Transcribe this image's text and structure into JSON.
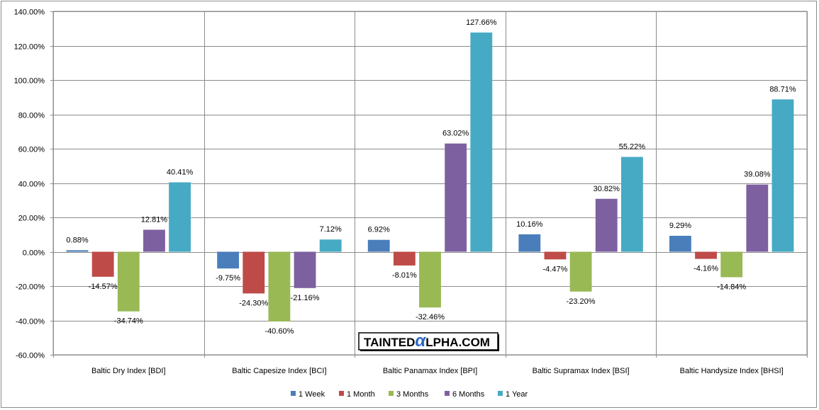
{
  "chart_data": {
    "type": "bar",
    "categories": [
      "Baltic Dry Index [BDI]",
      "Baltic Capesize Index [BCI]",
      "Baltic Panamax Index [BPI]",
      "Baltic Supramax Index [BSI]",
      "Baltic Handysize Index [BHSI]"
    ],
    "series": [
      {
        "name": "1 Week",
        "color": "#4a7ebb",
        "values": [
          0.88,
          -9.75,
          6.92,
          10.16,
          9.29
        ]
      },
      {
        "name": "1 Month",
        "color": "#be4b48",
        "values": [
          -14.57,
          -24.3,
          -8.01,
          -4.47,
          -4.16
        ]
      },
      {
        "name": "3 Months",
        "color": "#98b954",
        "values": [
          -34.74,
          -40.6,
          -32.46,
          -23.2,
          -14.84
        ]
      },
      {
        "name": "6 Months",
        "color": "#7d60a0",
        "values": [
          12.81,
          -21.16,
          63.02,
          30.82,
          39.08
        ]
      },
      {
        "name": "1 Year",
        "color": "#46aac5",
        "values": [
          40.41,
          7.12,
          127.66,
          55.22,
          88.71
        ]
      }
    ],
    "data_labels": [
      [
        "0.88%",
        "-9.75%",
        "6.92%",
        "10.16%",
        "9.29%"
      ],
      [
        "-14.57%",
        "-24.30%",
        "-8.01%",
        "-4.47%",
        "-4.16%"
      ],
      [
        "-34.74%",
        "-40.60%",
        "-32.46%",
        "-23.20%",
        "-14.84%"
      ],
      [
        "12.81%",
        "-21.16%",
        "63.02%",
        "30.82%",
        "39.08%"
      ],
      [
        "40.41%",
        "7.12%",
        "127.66%",
        "55.22%",
        "88.71%"
      ]
    ],
    "yticks": [
      -60,
      -40,
      -20,
      0,
      20,
      40,
      60,
      80,
      100,
      120,
      140
    ],
    "ytick_labels": [
      "-60.00%",
      "-40.00%",
      "-20.00%",
      "0.00%",
      "20.00%",
      "40.00%",
      "60.00%",
      "80.00%",
      "100.00%",
      "120.00%",
      "140.00%"
    ],
    "ylim": [
      -60,
      140
    ],
    "grid": true,
    "legend_position": "bottom"
  },
  "watermark": {
    "part1": "TAINTED",
    "part2": "α",
    "part3": "LPHA.COM"
  }
}
